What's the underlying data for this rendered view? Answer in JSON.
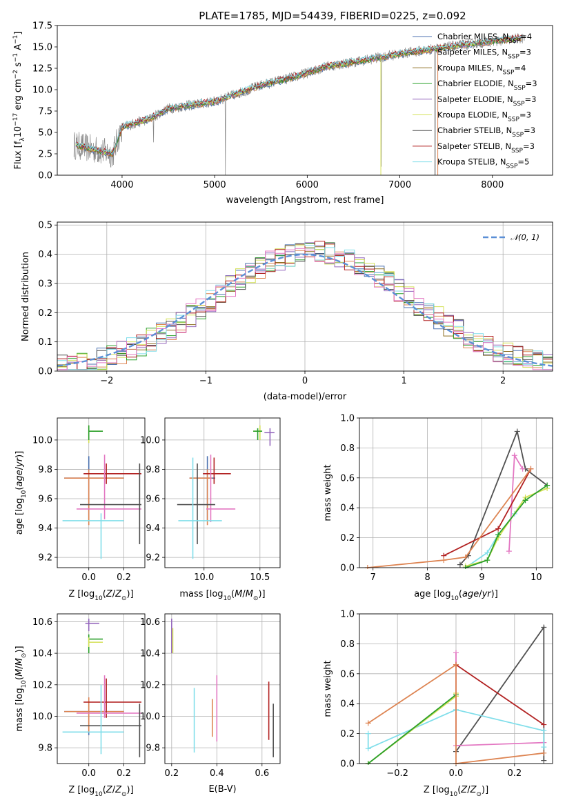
{
  "colors": {
    "chabrier_miles": "#4c72b0",
    "salpeter_miles": "#dd8452",
    "kroupa_miles": "#8c6d1f",
    "chabrier_elodie": "#2ca02c",
    "salpeter_elodie": "#9467bd",
    "kroupa_elodie": "#d4e157",
    "chabrier_stelib": "#505050",
    "salpeter_stelib": "#b22222",
    "kroupa_stelib": "#80deea",
    "pink": "#e377c2",
    "gauss": "#5b8fd6"
  },
  "chart_data": [
    {
      "id": "spectrum",
      "type": "line",
      "title": "PLATE=1785, MJD=54439, FIBERID=0225, z=0.092",
      "xlabel": "wavelength [Angstrom, rest frame]",
      "ylabel": "Flux [fλ10⁻¹⁷ erg cm⁻² s⁻¹ A⁻¹]",
      "xlim": [
        3300,
        8650
      ],
      "ylim": [
        0,
        17.5
      ],
      "xticks": [
        4000,
        5000,
        6000,
        7000,
        8000
      ],
      "yticks": [
        0.0,
        2.5,
        5.0,
        7.5,
        10.0,
        12.5,
        15.0,
        17.5
      ],
      "continuum": {
        "x": [
          3500,
          3900,
          4000,
          4300,
          4500,
          5000,
          5500,
          5900,
          6200,
          6600,
          7000,
          7400,
          7800,
          8300
        ],
        "y": [
          3.5,
          2.5,
          5.6,
          6.6,
          7.8,
          8.6,
          10.5,
          11.6,
          12.7,
          13.4,
          14.2,
          14.8,
          15.4,
          16.0
        ]
      },
      "legend": [
        {
          "label": "Chabrier MILES, N",
          "sub": "SSP",
          "suffix": "=4",
          "color": "#4c72b0"
        },
        {
          "label": "Salpeter MILES, N",
          "sub": "SSP",
          "suffix": "=3",
          "color": "#dd8452"
        },
        {
          "label": "Kroupa MILES, N",
          "sub": "SSP",
          "suffix": "=4",
          "color": "#8c6d1f"
        },
        {
          "label": "Chabrier ELODIE, N",
          "sub": "SSP",
          "suffix": "=3",
          "color": "#2ca02c"
        },
        {
          "label": "Salpeter ELODIE, N",
          "sub": "SSP",
          "suffix": "=3",
          "color": "#9467bd"
        },
        {
          "label": "Kroupa ELODIE, N",
          "sub": "SSP",
          "suffix": "=3",
          "color": "#d4e157"
        },
        {
          "label": "Chabrier STELIB, N",
          "sub": "SSP",
          "suffix": "=3",
          "color": "#505050"
        },
        {
          "label": "Salpeter STELIB, N",
          "sub": "SSP",
          "suffix": "=3",
          "color": "#b22222"
        },
        {
          "label": "Kroupa STELIB, N",
          "sub": "SSP",
          "suffix": "=5",
          "color": "#80deea"
        }
      ]
    },
    {
      "id": "residuals",
      "type": "histogram",
      "xlabel": "(data-model)/error",
      "ylabel": "Normed distribution",
      "xlim": [
        -2.5,
        2.5
      ],
      "ylim": [
        0,
        0.51
      ],
      "xticks": [
        -2,
        -1,
        0,
        1,
        2
      ],
      "yticks": [
        0.0,
        0.1,
        0.2,
        0.3,
        0.4,
        0.5
      ],
      "bin_width": 0.1,
      "legend": "𝒩(0, 1)"
    },
    {
      "id": "age_vs_z",
      "type": "errorbar",
      "xlabel": "Z [log10(Z/Z⊙)]",
      "ylabel": "age  [log10(age/yr)]",
      "xlim": [
        -0.18,
        0.32
      ],
      "ylim": [
        9.13,
        10.15
      ],
      "xticks": [
        0.0,
        0.2
      ],
      "yticks": [
        9.2,
        9.4,
        9.6,
        9.8,
        10.0
      ],
      "points": [
        {
          "x": 0.0,
          "y": 10.06,
          "xlo": 0.0,
          "xhi": 0.08,
          "ylo": 9.98,
          "yhi": 10.1,
          "color": "#d4e157"
        },
        {
          "x": 0.0,
          "y": 10.06,
          "xlo": 0.0,
          "xhi": 0.08,
          "ylo": 10.0,
          "yhi": 10.1,
          "color": "#2ca02c"
        },
        {
          "x": 0.0,
          "y": 9.74,
          "xlo": -0.14,
          "xhi": 0.2,
          "ylo": 9.45,
          "yhi": 9.89,
          "color": "#4c72b0"
        },
        {
          "x": 0.0,
          "y": 9.74,
          "xlo": -0.14,
          "xhi": 0.2,
          "ylo": 9.42,
          "yhi": 9.8,
          "color": "#dd8452"
        },
        {
          "x": 0.1,
          "y": 9.77,
          "xlo": -0.03,
          "xhi": 0.3,
          "ylo": 9.7,
          "yhi": 9.84,
          "color": "#b22222"
        },
        {
          "x": 0.09,
          "y": 9.53,
          "xlo": -0.07,
          "xhi": 0.3,
          "ylo": 9.46,
          "yhi": 9.9,
          "color": "#e377c2"
        },
        {
          "x": 0.29,
          "y": 9.56,
          "xlo": -0.05,
          "xhi": 0.3,
          "ylo": 9.29,
          "yhi": 9.84,
          "color": "#505050"
        },
        {
          "x": 0.07,
          "y": 9.45,
          "xlo": -0.15,
          "xhi": 0.2,
          "ylo": 9.19,
          "yhi": 9.5,
          "color": "#80deea"
        }
      ]
    },
    {
      "id": "age_vs_mass",
      "type": "errorbar",
      "xlabel": "mass [log10(M/M⊙)]",
      "ylabel": "",
      "xlim": [
        9.65,
        10.68
      ],
      "ylim": [
        9.13,
        10.15
      ],
      "xticks": [
        10.0,
        10.5
      ],
      "yticks": [
        9.2,
        9.4,
        9.6,
        9.8,
        10.0
      ],
      "points": [
        {
          "x": 10.5,
          "y": 10.06,
          "xlo": 10.44,
          "xhi": 10.52,
          "ylo": 10.0,
          "yhi": 10.1,
          "color": "#d4e157"
        },
        {
          "x": 10.48,
          "y": 10.06,
          "xlo": 10.44,
          "xhi": 10.52,
          "ylo": 10.0,
          "yhi": 10.08,
          "color": "#2ca02c"
        },
        {
          "x": 10.59,
          "y": 10.05,
          "xlo": 10.54,
          "xhi": 10.63,
          "ylo": 9.96,
          "yhi": 10.08,
          "color": "#9467bd"
        },
        {
          "x": 10.03,
          "y": 9.74,
          "xlo": 9.87,
          "xhi": 10.1,
          "ylo": 9.45,
          "yhi": 9.89,
          "color": "#4c72b0"
        },
        {
          "x": 10.03,
          "y": 9.74,
          "xlo": 9.87,
          "xhi": 10.07,
          "ylo": 9.42,
          "yhi": 9.8,
          "color": "#dd8452"
        },
        {
          "x": 10.09,
          "y": 9.77,
          "xlo": 9.99,
          "xhi": 10.24,
          "ylo": 9.7,
          "yhi": 9.88,
          "color": "#b22222"
        },
        {
          "x": 10.06,
          "y": 9.53,
          "xlo": 10.02,
          "xhi": 10.28,
          "ylo": 9.44,
          "yhi": 9.9,
          "color": "#e377c2"
        },
        {
          "x": 9.94,
          "y": 9.56,
          "xlo": 9.76,
          "xhi": 10.1,
          "ylo": 9.29,
          "yhi": 9.84,
          "color": "#505050"
        },
        {
          "x": 9.9,
          "y": 9.45,
          "xlo": 9.77,
          "xhi": 10.16,
          "ylo": 9.19,
          "yhi": 9.88,
          "color": "#80deea"
        }
      ]
    },
    {
      "id": "massweight_vs_age",
      "type": "line",
      "xlabel": "age  [log10(age/yr)]",
      "ylabel": "mass weight",
      "xlim": [
        6.75,
        10.3
      ],
      "ylim": [
        0,
        1.0
      ],
      "xticks": [
        7,
        8,
        9,
        10
      ],
      "yticks": [
        0.0,
        0.2,
        0.4,
        0.6,
        0.8,
        1.0
      ],
      "series": [
        {
          "color": "#505050",
          "x": [
            8.6,
            8.75,
            9.65,
            9.8,
            10.2
          ],
          "y": [
            0.02,
            0.08,
            0.91,
            0.66,
            0.55
          ]
        },
        {
          "color": "#e377c2",
          "x": [
            9.5,
            9.6,
            9.75
          ],
          "y": [
            0.11,
            0.75,
            0.66
          ]
        },
        {
          "color": "#80deea",
          "x": [
            8.7,
            9.1,
            9.3,
            9.6
          ],
          "y": [
            0.0,
            0.1,
            0.22,
            0.36
          ]
        },
        {
          "color": "#d4e157",
          "x": [
            8.7,
            9.1,
            9.3,
            9.8,
            10.2
          ],
          "y": [
            0.01,
            0.05,
            0.2,
            0.47,
            0.53
          ]
        },
        {
          "color": "#2ca02c",
          "x": [
            8.7,
            9.1,
            9.3,
            9.8,
            10.2
          ],
          "y": [
            0.0,
            0.05,
            0.22,
            0.45,
            0.55
          ]
        },
        {
          "color": "#b22222",
          "x": [
            8.3,
            9.3,
            9.9
          ],
          "y": [
            0.08,
            0.26,
            0.66
          ]
        },
        {
          "color": "#dd8452",
          "x": [
            6.9,
            8.3,
            8.7,
            9.9
          ],
          "y": [
            0.0,
            0.05,
            0.07,
            0.66
          ]
        }
      ]
    },
    {
      "id": "mass_vs_z",
      "type": "errorbar",
      "xlabel": "Z [log10(Z/Z⊙)]",
      "ylabel": "mass [log10(M/M⊙)]",
      "xlim": [
        -0.18,
        0.32
      ],
      "ylim": [
        9.7,
        10.65
      ],
      "xticks": [
        0.0,
        0.2
      ],
      "yticks": [
        9.8,
        10.0,
        10.2,
        10.4,
        10.6
      ],
      "points": [
        {
          "x": 0.0,
          "y": 10.59,
          "xlo": -0.02,
          "xhi": 0.06,
          "ylo": 10.54,
          "yhi": 10.62,
          "color": "#9467bd"
        },
        {
          "x": 0.0,
          "y": 10.49,
          "xlo": 0.0,
          "xhi": 0.08,
          "ylo": 10.4,
          "yhi": 10.52,
          "color": "#2ca02c"
        },
        {
          "x": 0.0,
          "y": 10.47,
          "xlo": 0.0,
          "xhi": 0.08,
          "ylo": 10.44,
          "yhi": 10.5,
          "color": "#d4e157"
        },
        {
          "x": 0.0,
          "y": 10.03,
          "xlo": -0.14,
          "xhi": 0.2,
          "ylo": 9.88,
          "yhi": 10.1,
          "color": "#4c72b0"
        },
        {
          "x": 0.0,
          "y": 10.03,
          "xlo": -0.14,
          "xhi": 0.2,
          "ylo": 9.9,
          "yhi": 10.12,
          "color": "#dd8452"
        },
        {
          "x": 0.1,
          "y": 10.09,
          "xlo": -0.03,
          "xhi": 0.3,
          "ylo": 9.99,
          "yhi": 10.24,
          "color": "#b22222"
        },
        {
          "x": 0.09,
          "y": 10.02,
          "xlo": -0.07,
          "xhi": 0.3,
          "ylo": 9.99,
          "yhi": 10.26,
          "color": "#e377c2"
        },
        {
          "x": 0.29,
          "y": 9.94,
          "xlo": -0.05,
          "xhi": 0.3,
          "ylo": 9.74,
          "yhi": 10.08,
          "color": "#505050"
        },
        {
          "x": 0.07,
          "y": 9.9,
          "xlo": -0.15,
          "xhi": 0.2,
          "ylo": 9.76,
          "yhi": 10.2,
          "color": "#80deea"
        }
      ]
    },
    {
      "id": "mass_vs_ebv",
      "type": "errorbar",
      "xlabel": "E(B-V)",
      "ylabel": "",
      "xlim": [
        0.17,
        0.68
      ],
      "ylim": [
        9.7,
        10.65
      ],
      "xticks": [
        0.2,
        0.4,
        0.6
      ],
      "yticks": [
        9.8,
        10.0,
        10.2,
        10.4,
        10.6
      ],
      "points": [
        {
          "x": 0.2,
          "y": 10.5,
          "xlo": 0.2,
          "xhi": 0.2,
          "ylo": 10.4,
          "yhi": 10.62,
          "color": "#9467bd"
        },
        {
          "x": 0.205,
          "y": 10.47,
          "xlo": 0.205,
          "xhi": 0.205,
          "ylo": 10.4,
          "yhi": 10.56,
          "color": "#d4e157"
        },
        {
          "x": 0.3,
          "y": 10.0,
          "xlo": 0.3,
          "xhi": 0.3,
          "ylo": 9.77,
          "yhi": 10.18,
          "color": "#80deea"
        },
        {
          "x": 0.38,
          "y": 9.98,
          "xlo": 0.38,
          "xhi": 0.38,
          "ylo": 9.87,
          "yhi": 10.11,
          "color": "#dd8452"
        },
        {
          "x": 0.4,
          "y": 10.05,
          "xlo": 0.4,
          "xhi": 0.4,
          "ylo": 9.84,
          "yhi": 10.26,
          "color": "#e377c2"
        },
        {
          "x": 0.63,
          "y": 10.05,
          "xlo": 0.63,
          "xhi": 0.63,
          "ylo": 9.85,
          "yhi": 10.22,
          "color": "#b22222"
        },
        {
          "x": 0.65,
          "y": 9.95,
          "xlo": 0.65,
          "xhi": 0.65,
          "ylo": 9.74,
          "yhi": 10.08,
          "color": "#505050"
        }
      ]
    },
    {
      "id": "massweight_vs_z",
      "type": "line",
      "xlabel": "Z [log10(Z/Z⊙)]",
      "ylabel": "mass weight",
      "xlim": [
        -0.33,
        0.33
      ],
      "ylim": [
        0,
        1.0
      ],
      "xticks": [
        -0.2,
        0.0,
        0.2
      ],
      "yticks": [
        0.0,
        0.2,
        0.4,
        0.6,
        0.8,
        1.0
      ],
      "series": [
        {
          "color": "#505050",
          "x": [
            0.0,
            0.3,
            0.3
          ],
          "y": [
            0.08,
            0.91,
            0.02
          ]
        },
        {
          "color": "#e377c2",
          "x": [
            0.0,
            0.0,
            0.0,
            0.3
          ],
          "y": [
            0.74,
            0.66,
            0.12,
            0.14
          ]
        },
        {
          "color": "#80deea",
          "x": [
            -0.3,
            -0.3,
            0.0,
            0.3,
            0.3
          ],
          "y": [
            0.2,
            0.1,
            0.36,
            0.22,
            0.11
          ]
        },
        {
          "color": "#d4e157",
          "x": [
            -0.3,
            0.0,
            0.0
          ],
          "y": [
            0.0,
            0.45,
            0.47
          ]
        },
        {
          "color": "#2ca02c",
          "x": [
            -0.3,
            0.0
          ],
          "y": [
            0.0,
            0.46
          ]
        },
        {
          "color": "#b22222",
          "x": [
            0.0,
            0.3
          ],
          "y": [
            0.66,
            0.26
          ]
        },
        {
          "color": "#dd8452",
          "x": [
            -0.3,
            0.0,
            0.0,
            0.3
          ],
          "y": [
            0.27,
            0.66,
            0.0,
            0.07
          ]
        }
      ]
    }
  ]
}
